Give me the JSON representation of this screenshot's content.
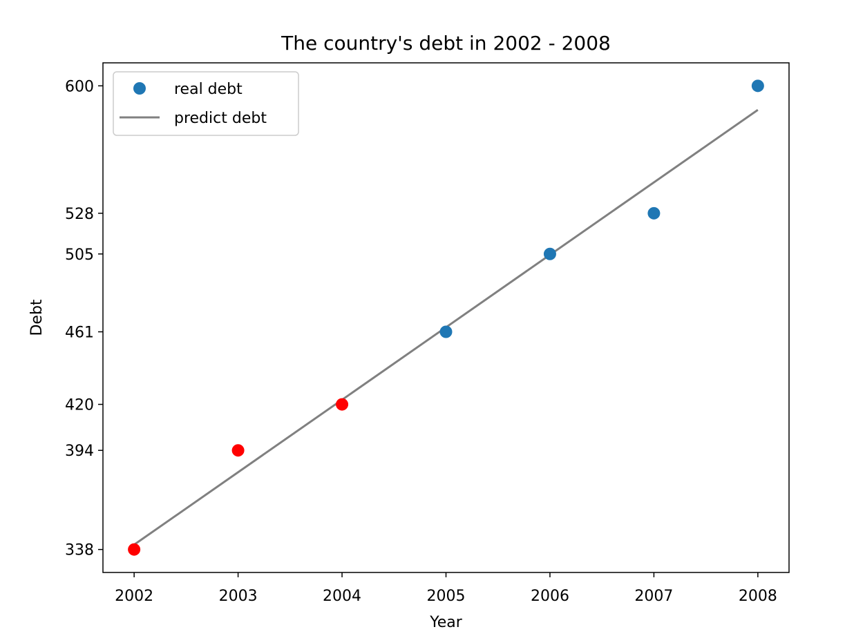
{
  "chart_data": {
    "type": "scatter",
    "title": "The country's debt in 2002 - 2008",
    "xlabel": "Year",
    "ylabel": "Debt",
    "x_ticks": [
      2002,
      2003,
      2004,
      2005,
      2006,
      2007,
      2008
    ],
    "y_ticks": [
      338,
      394,
      420,
      461,
      505,
      528,
      600
    ],
    "xlim": [
      2001.7,
      2008.3
    ],
    "ylim": [
      325,
      613
    ],
    "grid": false,
    "legend_position": "top-left",
    "series": [
      {
        "name": "real debt",
        "kind": "scatter",
        "color": "#1f77b4",
        "x": [
          2002,
          2003,
          2004,
          2005,
          2006,
          2007,
          2008
        ],
        "y": [
          338,
          394,
          420,
          461,
          505,
          528,
          600
        ],
        "point_colors": [
          "#ff0000",
          "#ff0000",
          "#ff0000",
          "#1f77b4",
          "#1f77b4",
          "#1f77b4",
          "#1f77b4"
        ]
      },
      {
        "name": "predict debt",
        "kind": "line",
        "color": "#808080",
        "x": [
          2002,
          2008
        ],
        "y": [
          340.7,
          586.4
        ]
      }
    ]
  }
}
